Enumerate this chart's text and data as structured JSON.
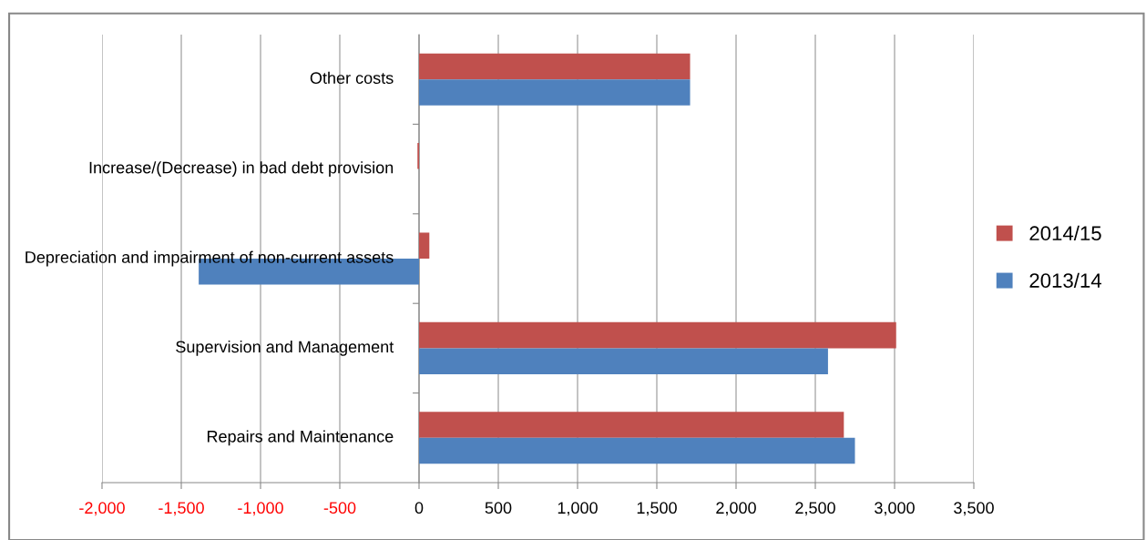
{
  "chart_data": {
    "type": "bar",
    "orientation": "horizontal",
    "categories": [
      "Other costs",
      "Increase/(Decrease) in bad debt provision",
      "Depreciation and impairment of non-current assets",
      "Supervision and Management",
      "Repairs and Maintenance"
    ],
    "series": [
      {
        "name": "2014/15",
        "color": "#c0504d",
        "values": [
          1710,
          -10,
          65,
          3010,
          2680
        ]
      },
      {
        "name": "2013/14",
        "color": "#4f81bd",
        "values": [
          1710,
          0,
          -1390,
          2580,
          2750
        ]
      }
    ],
    "xlim": [
      -2000,
      3500
    ],
    "xticks": [
      {
        "value": -2000,
        "label": "-2,000"
      },
      {
        "value": -1500,
        "label": "-1,500"
      },
      {
        "value": -1000,
        "label": "-1,000"
      },
      {
        "value": -500,
        "label": "-500"
      },
      0,
      {
        "value": 500,
        "label": "500"
      },
      {
        "value": 1000,
        "label": "1,000"
      },
      {
        "value": 1500,
        "label": "1,500"
      },
      {
        "value": 2000,
        "label": "2,000"
      },
      {
        "value": 2500,
        "label": "2,500"
      },
      {
        "value": 3000,
        "label": "3,000"
      },
      {
        "value": 3500,
        "label": "3,500"
      }
    ],
    "grid": "x",
    "legend": "right"
  }
}
